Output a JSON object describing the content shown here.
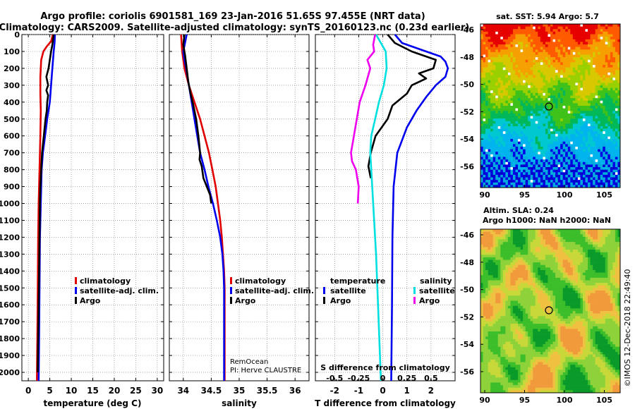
{
  "header": {
    "line1": "Argo profile: coriolis 6901581_169 23-Jan-2016 51.65S 97.455E (NRT data)",
    "line2": "Climatology: CARS2009. Satellite-adjusted climatology: synTS_20160123.nc (0.23d earlier)"
  },
  "colors": {
    "climatology": "#e00000",
    "satellite": "#0000ee",
    "argo": "#000000",
    "s_satellite": "#00e0e0",
    "s_argo": "#ee00ee"
  },
  "chart_data": [
    {
      "type": "line",
      "name": "temperature",
      "xlabel": "temperature (deg C)",
      "ylabel": "",
      "xlim": [
        -1.5,
        31.5
      ],
      "ylim": [
        2050,
        0
      ],
      "xticks": [
        "0",
        "5",
        "10",
        "15",
        "20",
        "25",
        "30"
      ],
      "yticks": [
        "0",
        "100",
        "200",
        "300",
        "400",
        "500",
        "600",
        "700",
        "800",
        "900",
        "1000",
        "1100",
        "1200",
        "1300",
        "1400",
        "1500",
        "1600",
        "1700",
        "1800",
        "1900",
        "2000"
      ],
      "legend": {
        "items": [
          "climatology",
          "satellite-adj. clim.",
          "Argo"
        ],
        "placement": "bottom-right"
      },
      "series": [
        {
          "name": "climatology",
          "color_key": "climatology",
          "points": [
            [
              5.7,
              0
            ],
            [
              5.3,
              40
            ],
            [
              4.3,
              70
            ],
            [
              3.5,
              100
            ],
            [
              3.0,
              150
            ],
            [
              2.8,
              250
            ],
            [
              2.8,
              350
            ],
            [
              2.9,
              450
            ],
            [
              2.8,
              600
            ],
            [
              2.6,
              800
            ],
            [
              2.4,
              1000
            ],
            [
              2.3,
              1200
            ],
            [
              2.2,
              1500
            ],
            [
              2.1,
              1800
            ],
            [
              2.0,
              2050
            ]
          ]
        },
        {
          "name": "satellite-adj. clim.",
          "color_key": "satellite",
          "points": [
            [
              6.2,
              0
            ],
            [
              6.1,
              50
            ],
            [
              5.9,
              100
            ],
            [
              5.6,
              200
            ],
            [
              5.3,
              300
            ],
            [
              5.0,
              400
            ],
            [
              4.4,
              500
            ],
            [
              3.9,
              600
            ],
            [
              3.4,
              700
            ],
            [
              3.1,
              800
            ],
            [
              2.9,
              1000
            ],
            [
              2.7,
              1200
            ],
            [
              2.6,
              1500
            ],
            [
              2.5,
              1800
            ],
            [
              2.4,
              2050
            ]
          ]
        },
        {
          "name": "Argo",
          "color_key": "argo",
          "points": [
            [
              5.9,
              0
            ],
            [
              5.6,
              60
            ],
            [
              5.3,
              100
            ],
            [
              5.0,
              150
            ],
            [
              4.7,
              200
            ],
            [
              4.2,
              250
            ],
            [
              4.6,
              300
            ],
            [
              4.2,
              330
            ],
            [
              4.6,
              360
            ],
            [
              4.4,
              400
            ],
            [
              4.3,
              450
            ],
            [
              4.0,
              500
            ],
            [
              3.6,
              600
            ],
            [
              3.2,
              700
            ],
            [
              3.0,
              800
            ],
            [
              2.8,
              900
            ],
            [
              2.7,
              1000
            ],
            [
              2.6,
              1200
            ],
            [
              2.5,
              1400
            ],
            [
              2.4,
              1600
            ],
            [
              2.3,
              1800
            ],
            [
              2.2,
              2000
            ]
          ]
        }
      ]
    },
    {
      "type": "line",
      "name": "salinity",
      "xlabel": "salinity",
      "ylabel": "",
      "xlim": [
        33.75,
        36.25
      ],
      "ylim": [
        2050,
        0
      ],
      "xticks": [
        "34",
        "34.5",
        "35",
        "35.5",
        "36"
      ],
      "legend": {
        "items": [
          "climatology",
          "satellite-adj. clim.",
          "Argo"
        ],
        "placement": "bottom-right"
      },
      "annotation": [
        "RemOcean",
        "PI: Herve CLAUSTRE"
      ],
      "series": [
        {
          "name": "climatology",
          "color_key": "climatology",
          "points": [
            [
              33.96,
              0
            ],
            [
              33.98,
              100
            ],
            [
              34.02,
              200
            ],
            [
              34.1,
              300
            ],
            [
              34.2,
              400
            ],
            [
              34.3,
              500
            ],
            [
              34.38,
              600
            ],
            [
              34.46,
              700
            ],
            [
              34.52,
              800
            ],
            [
              34.58,
              900
            ],
            [
              34.62,
              1000
            ],
            [
              34.66,
              1100
            ],
            [
              34.69,
              1200
            ],
            [
              34.71,
              1300
            ],
            [
              34.73,
              1400
            ],
            [
              34.74,
              1500
            ],
            [
              34.74,
              1800
            ],
            [
              34.74,
              2050
            ]
          ]
        },
        {
          "name": "satellite-adj. clim.",
          "color_key": "satellite",
          "points": [
            [
              34.06,
              0
            ],
            [
              34.03,
              50
            ],
            [
              34.0,
              100
            ],
            [
              34.02,
              150
            ],
            [
              34.05,
              200
            ],
            [
              34.1,
              300
            ],
            [
              34.15,
              400
            ],
            [
              34.2,
              500
            ],
            [
              34.25,
              600
            ],
            [
              34.3,
              700
            ],
            [
              34.38,
              800
            ],
            [
              34.45,
              900
            ],
            [
              34.53,
              1000
            ],
            [
              34.6,
              1100
            ],
            [
              34.66,
              1200
            ],
            [
              34.7,
              1300
            ],
            [
              34.72,
              1400
            ],
            [
              34.73,
              1500
            ],
            [
              34.73,
              1800
            ],
            [
              34.73,
              2050
            ]
          ]
        },
        {
          "name": "Argo",
          "color_key": "argo",
          "points": [
            [
              34.02,
              0
            ],
            [
              34.0,
              60
            ],
            [
              34.03,
              120
            ],
            [
              34.06,
              200
            ],
            [
              34.09,
              280
            ],
            [
              34.13,
              350
            ],
            [
              34.18,
              420
            ],
            [
              34.23,
              500
            ],
            [
              34.27,
              600
            ],
            [
              34.3,
              700
            ],
            [
              34.29,
              740
            ],
            [
              34.33,
              780
            ],
            [
              34.36,
              850
            ],
            [
              34.42,
              900
            ],
            [
              34.48,
              950
            ],
            [
              34.5,
              1000
            ]
          ]
        }
      ]
    },
    {
      "type": "line",
      "name": "difference",
      "xlabel": "T difference from climatology",
      "x2label": "S difference from climatology",
      "xlim": [
        -2.8,
        3.0
      ],
      "ylim": [
        2050,
        0
      ],
      "xticks": [
        "-2",
        "-1",
        "0",
        "1",
        "2"
      ],
      "x2ticks": [
        "-0.5",
        "-0.25",
        "0",
        "0.25",
        "0.5"
      ],
      "legend_temperature": {
        "title": "temperature",
        "items": [
          "satellite",
          "Argo"
        ],
        "placement": "bottom-left"
      },
      "legend_salinity": {
        "title": "salinity",
        "items": [
          "satellite",
          "Argo"
        ],
        "placement": "bottom-right"
      },
      "series": [
        {
          "name": "T satellite",
          "color_key": "satellite",
          "points": [
            [
              0.5,
              0
            ],
            [
              0.8,
              50
            ],
            [
              1.8,
              100
            ],
            [
              2.4,
              130
            ],
            [
              2.6,
              160
            ],
            [
              2.7,
              200
            ],
            [
              2.6,
              250
            ],
            [
              2.2,
              300
            ],
            [
              1.8,
              370
            ],
            [
              1.4,
              450
            ],
            [
              1.0,
              550
            ],
            [
              0.6,
              700
            ],
            [
              0.45,
              900
            ],
            [
              0.4,
              1200
            ],
            [
              0.38,
              1600
            ],
            [
              0.35,
              2050
            ]
          ]
        },
        {
          "name": "T Argo",
          "color_key": "argo",
          "points": [
            [
              0.2,
              0
            ],
            [
              0.5,
              50
            ],
            [
              1.2,
              100
            ],
            [
              1.8,
              130
            ],
            [
              2.2,
              150
            ],
            [
              2.1,
              200
            ],
            [
              1.5,
              230
            ],
            [
              1.8,
              260
            ],
            [
              1.2,
              300
            ],
            [
              1.0,
              350
            ],
            [
              0.4,
              420
            ],
            [
              0.2,
              500
            ],
            [
              -0.3,
              600
            ],
            [
              -0.5,
              700
            ],
            [
              -0.6,
              780
            ],
            [
              -0.5,
              850
            ]
          ]
        },
        {
          "name": "S satellite",
          "color_key": "s_satellite",
          "points": [
            [
              -0.07,
              0
            ],
            [
              0.03,
              100
            ],
            [
              0.04,
              200
            ],
            [
              0.01,
              300
            ],
            [
              -0.04,
              400
            ],
            [
              -0.08,
              500
            ],
            [
              -0.12,
              600
            ],
            [
              -0.13,
              700
            ],
            [
              -0.12,
              800
            ],
            [
              -0.1,
              1000
            ],
            [
              -0.07,
              1300
            ],
            [
              -0.05,
              1600
            ],
            [
              -0.03,
              1900
            ],
            [
              -0.02,
              2050
            ]
          ]
        },
        {
          "name": "S Argo",
          "color_key": "s_argo",
          "points": [
            [
              -0.08,
              0
            ],
            [
              -0.1,
              60
            ],
            [
              -0.09,
              100
            ],
            [
              -0.16,
              150
            ],
            [
              -0.13,
              200
            ],
            [
              -0.18,
              300
            ],
            [
              -0.24,
              400
            ],
            [
              -0.27,
              500
            ],
            [
              -0.3,
              600
            ],
            [
              -0.33,
              700
            ],
            [
              -0.32,
              750
            ],
            [
              -0.28,
              800
            ],
            [
              -0.25,
              900
            ],
            [
              -0.26,
              1000
            ]
          ]
        }
      ]
    }
  ],
  "maps": {
    "sst": {
      "title": "sat. SST: 5.94 Argo: 5.7",
      "xticks": [
        "90",
        "95",
        "100",
        "105"
      ],
      "yticks": [
        "-46",
        "-48",
        "-50",
        "-52",
        "-54",
        "-56"
      ]
    },
    "sla": {
      "title1": "Altim. SLA: 0.24",
      "title2": "Argo h1000: NaN h2000: NaN",
      "xticks": [
        "90",
        "95",
        "100",
        "105"
      ],
      "yticks": [
        "-46",
        "-48",
        "-50",
        "-52",
        "-54",
        "-56"
      ]
    }
  },
  "watermark": "©IMOS 12-Dec-2018 22:49:40"
}
